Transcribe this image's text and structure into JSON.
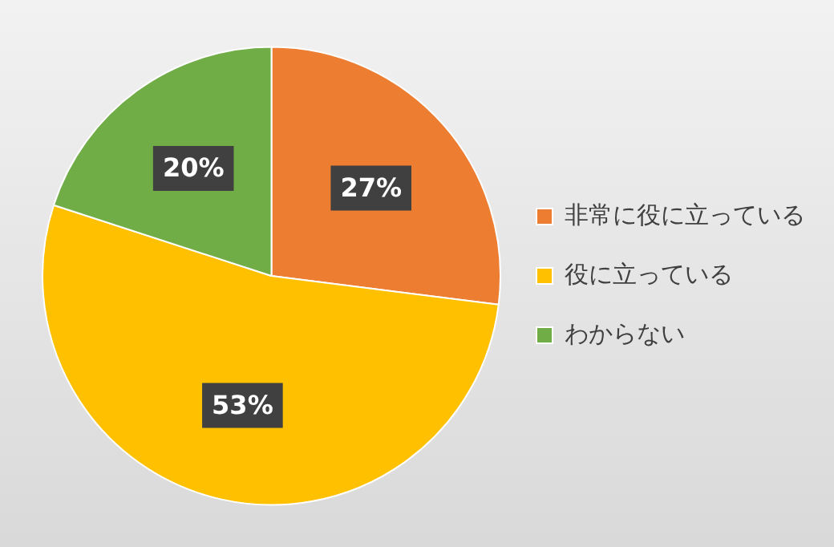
{
  "chart_data": {
    "type": "pie",
    "categories": [
      "非常に役に立っている",
      "役に立っている",
      "わからない"
    ],
    "values": [
      27,
      53,
      20
    ],
    "colors": [
      "#ed7d31",
      "#ffc000",
      "#70ad47"
    ],
    "value_labels": [
      "27%",
      "53%",
      "20%"
    ],
    "legend": "right"
  }
}
